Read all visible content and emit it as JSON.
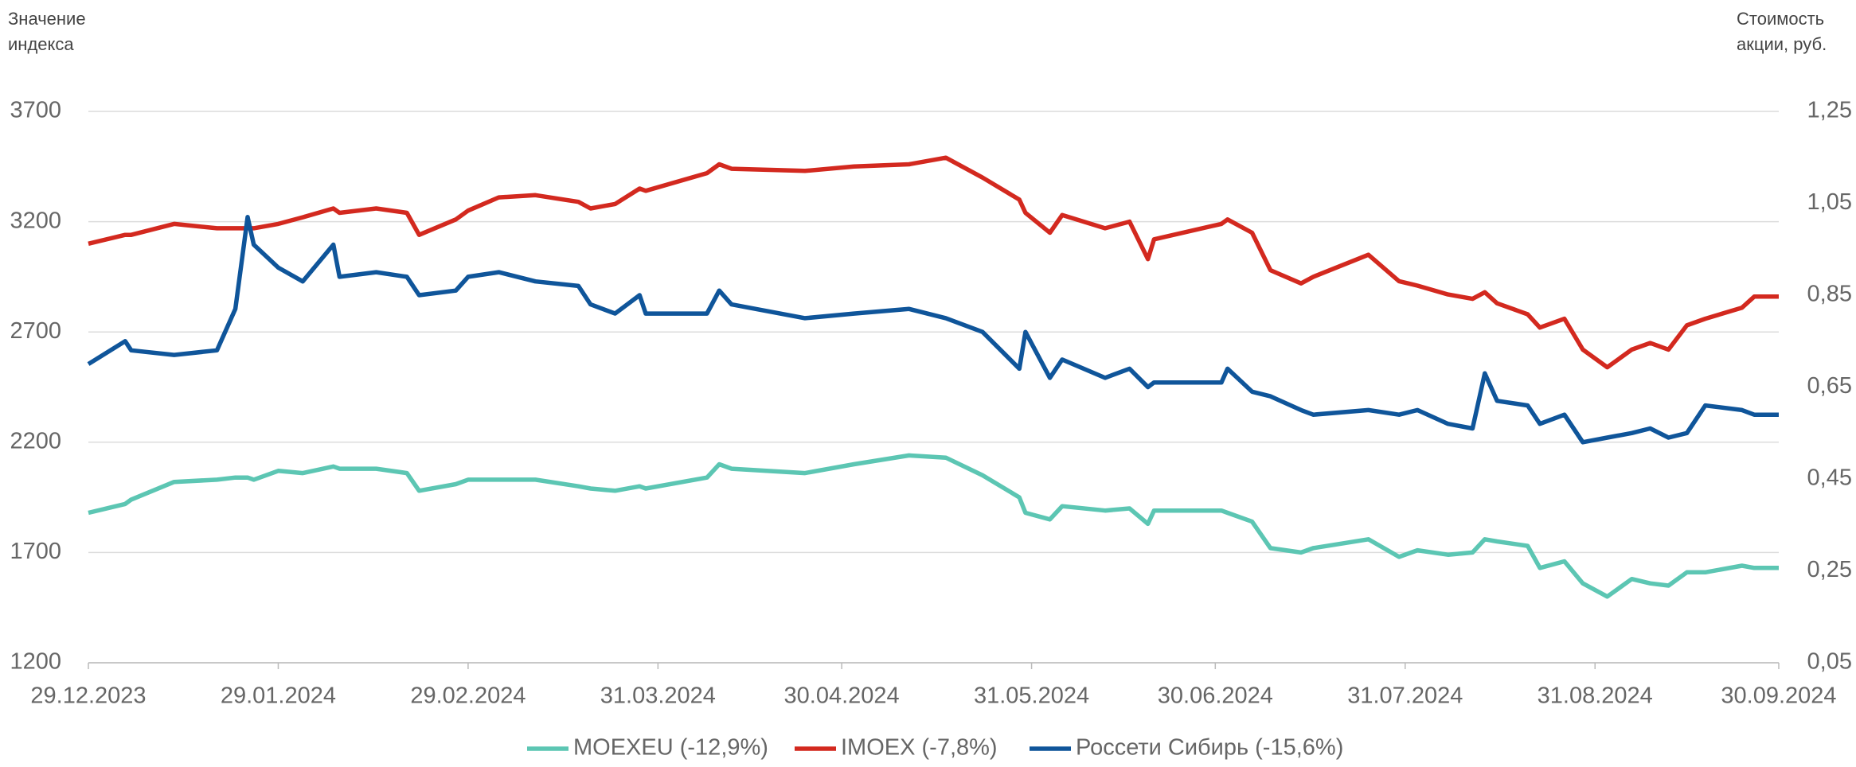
{
  "chart_data": {
    "type": "line",
    "y_label": "Значение индекса",
    "y2_label": "Стоимость акции, руб.",
    "x": [
      "29.12.2023",
      "04.01.2024",
      "05.01.2024",
      "12.01.2024",
      "19.01.2024",
      "22.01.2024",
      "24.01.2024",
      "25.01.2024",
      "29.01.2024",
      "02.02.2024",
      "07.02.2024",
      "08.02.2024",
      "14.02.2024",
      "19.02.2024",
      "21.02.2024",
      "27.02.2024",
      "29.02.2024",
      "05.03.2024",
      "11.03.2024",
      "18.03.2024",
      "20.03.2024",
      "24.03.2024",
      "28.03.2024",
      "29.03.2024",
      "08.04.2024",
      "10.04.2024",
      "12.04.2024",
      "24.04.2024",
      "02.05.2024",
      "11.05.2024",
      "17.05.2024",
      "23.05.2024",
      "29.05.2024",
      "30.05.2024",
      "03.06.2024",
      "05.06.2024",
      "12.06.2024",
      "16.06.2024",
      "19.06.2024",
      "20.06.2024",
      "01.07.2024",
      "02.07.2024",
      "06.07.2024",
      "09.07.2024",
      "14.07.2024",
      "16.07.2024",
      "25.07.2024",
      "30.07.2024",
      "02.08.2024",
      "07.08.2024",
      "11.08.2024",
      "13.08.2024",
      "15.08.2024",
      "20.08.2024",
      "22.08.2024",
      "26.08.2024",
      "29.08.2024",
      "02.09.2024",
      "06.09.2024",
      "09.09.2024",
      "12.09.2024",
      "15.09.2024",
      "18.09.2024",
      "24.09.2024",
      "26.09.2024",
      "30.09.2024"
    ],
    "series": [
      {
        "name": "MOEXEU (-12,9%)",
        "color": "#5cc6b3",
        "values": [
          1880,
          1920,
          1940,
          2020,
          2030,
          2040,
          2040,
          2030,
          2070,
          2060,
          2090,
          2080,
          2080,
          2060,
          1980,
          2010,
          2030,
          2030,
          2030,
          2000,
          1990,
          1980,
          2000,
          1990,
          2040,
          2100,
          2080,
          2060,
          2100,
          2140,
          2130,
          2050,
          1950,
          1880,
          1850,
          1910,
          1890,
          1900,
          1830,
          1890,
          1890,
          1880,
          1840,
          1720,
          1700,
          1720,
          1760,
          1680,
          1710,
          1690,
          1700,
          1760,
          1750,
          1730,
          1630,
          1660,
          1560,
          1500,
          1580,
          1560,
          1550,
          1610,
          1610,
          1640,
          1630,
          1630
        ]
      },
      {
        "name": "IMOEX (-7,8%)",
        "color": "#d3291f",
        "values": [
          3100,
          3140,
          3140,
          3190,
          3170,
          3170,
          3170,
          3170,
          3190,
          3220,
          3260,
          3240,
          3260,
          3240,
          3140,
          3210,
          3250,
          3310,
          3320,
          3290,
          3260,
          3280,
          3350,
          3340,
          3420,
          3460,
          3440,
          3430,
          3450,
          3460,
          3490,
          3400,
          3300,
          3240,
          3150,
          3230,
          3170,
          3200,
          3030,
          3120,
          3190,
          3210,
          3150,
          2980,
          2920,
          2950,
          3050,
          2930,
          2910,
          2870,
          2850,
          2880,
          2830,
          2780,
          2720,
          2760,
          2620,
          2540,
          2620,
          2650,
          2620,
          2730,
          2760,
          2810,
          2860,
          2860
        ]
      },
      {
        "name": "Россети Сибирь (-15,6%)",
        "color": "#0f559a",
        "axis": "y2",
        "values": [
          0.7,
          0.75,
          0.73,
          0.72,
          0.73,
          0.82,
          1.02,
          0.96,
          0.91,
          0.88,
          0.96,
          0.89,
          0.9,
          0.89,
          0.85,
          0.86,
          0.89,
          0.9,
          0.88,
          0.87,
          0.83,
          0.81,
          0.85,
          0.81,
          0.81,
          0.86,
          0.83,
          0.8,
          0.81,
          0.82,
          0.8,
          0.77,
          0.69,
          0.77,
          0.67,
          0.71,
          0.67,
          0.69,
          0.65,
          0.66,
          0.66,
          0.69,
          0.64,
          0.63,
          0.6,
          0.59,
          0.6,
          0.59,
          0.6,
          0.57,
          0.56,
          0.68,
          0.62,
          0.61,
          0.57,
          0.59,
          0.53,
          0.54,
          0.55,
          0.56,
          0.54,
          0.55,
          0.61,
          0.6,
          0.59,
          0.59
        ]
      }
    ],
    "xlim": [
      "29.12.2023",
      "30.09.2024"
    ],
    "xticks": [
      "29.12.2023",
      "29.01.2024",
      "29.02.2024",
      "31.03.2024",
      "30.04.2024",
      "31.05.2024",
      "30.06.2024",
      "31.07.2024",
      "31.08.2024",
      "30.09.2024"
    ],
    "ylim": [
      1200,
      3700
    ],
    "yticks": [
      1200,
      1700,
      2200,
      2700,
      3200,
      3700
    ],
    "y2lim": [
      0.05,
      1.25
    ],
    "y2ticks": [
      {
        "value": 0.05,
        "label": "0,05"
      },
      {
        "value": 0.25,
        "label": "0,25"
      },
      {
        "value": 0.45,
        "label": "0,45"
      },
      {
        "value": 0.65,
        "label": "0,65"
      },
      {
        "value": 0.85,
        "label": "0,85"
      },
      {
        "value": 1.05,
        "label": "1,05"
      },
      {
        "value": 1.25,
        "label": "1,25"
      }
    ],
    "grid": true,
    "legend": "bottom"
  }
}
